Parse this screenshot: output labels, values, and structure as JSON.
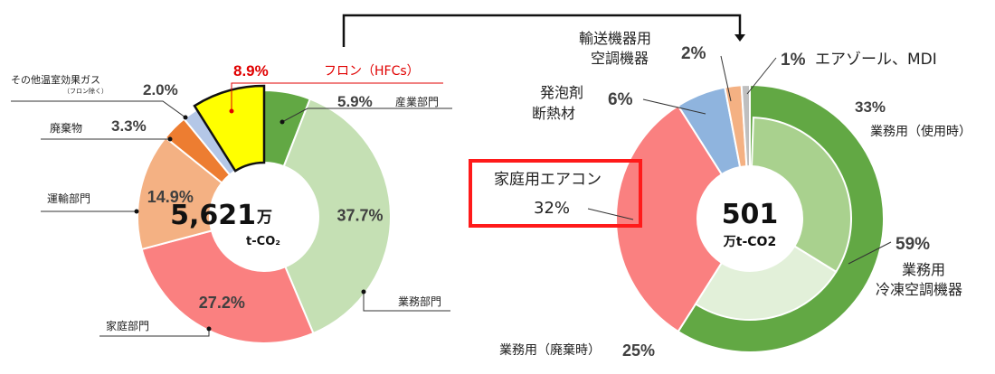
{
  "chart_data": [
    {
      "type": "donut",
      "center_value": "5,621",
      "center_unit": "万",
      "center_sub": "t-CO₂",
      "highlight_color": "#e00000",
      "slices": [
        {
          "name": "産業部門",
          "value": 5.9,
          "label": "5.9%",
          "color": "#62a844"
        },
        {
          "name": "業務部門",
          "value": 37.7,
          "label": "37.7%",
          "color": "#c5e0b4"
        },
        {
          "name": "家庭部門",
          "value": 27.2,
          "label": "27.2%",
          "color": "#fa8080"
        },
        {
          "name": "運輸部門",
          "value": 14.9,
          "label": "14.9%",
          "color": "#f4b183"
        },
        {
          "name": "廃棄物",
          "value": 3.3,
          "label": "3.3%",
          "color": "#ed7d31"
        },
        {
          "name": "その他温室効果ガス",
          "name_sub": "（フロン除く）",
          "value": 2.0,
          "label": "2.0%",
          "color": "#b4c7e7"
        },
        {
          "name": "フロン（HFCs）",
          "value": 8.9,
          "label": "8.9%",
          "color": "#ffff00",
          "highlight": true
        }
      ]
    },
    {
      "type": "donut",
      "center_value": "501",
      "center_sub": "万t-CO2",
      "outer_slices": [
        {
          "name": "業務用冷凍空調機器",
          "name_lines": [
            "業務用",
            "冷凍空調機器"
          ],
          "value": 59,
          "label": "59%",
          "color": "#62a844"
        },
        {
          "name": "家庭用エアコン",
          "value": 32,
          "label": "32%",
          "color": "#fa8080",
          "highlight": true
        },
        {
          "name": "発泡剤断熱材",
          "name_lines": [
            "発泡剤",
            "断熱材"
          ],
          "value": 6,
          "label": "6%",
          "color": "#8fb4de"
        },
        {
          "name": "輸送機器用空調機器",
          "name_lines": [
            "輸送機器用",
            "空調機器"
          ],
          "value": 2,
          "label": "2%",
          "color": "#f4b183"
        },
        {
          "name": "エアゾール、MDI",
          "value": 1,
          "label": "1%",
          "color": "#bfbfbf"
        }
      ],
      "inner_slices": [
        {
          "name": "業務用（使用時）",
          "value": 33,
          "label": "33%",
          "color": "#a9d18e"
        },
        {
          "name": "業務用（廃棄時）",
          "value": 25,
          "label": "25%",
          "color": "#e2f0d9"
        }
      ]
    }
  ]
}
